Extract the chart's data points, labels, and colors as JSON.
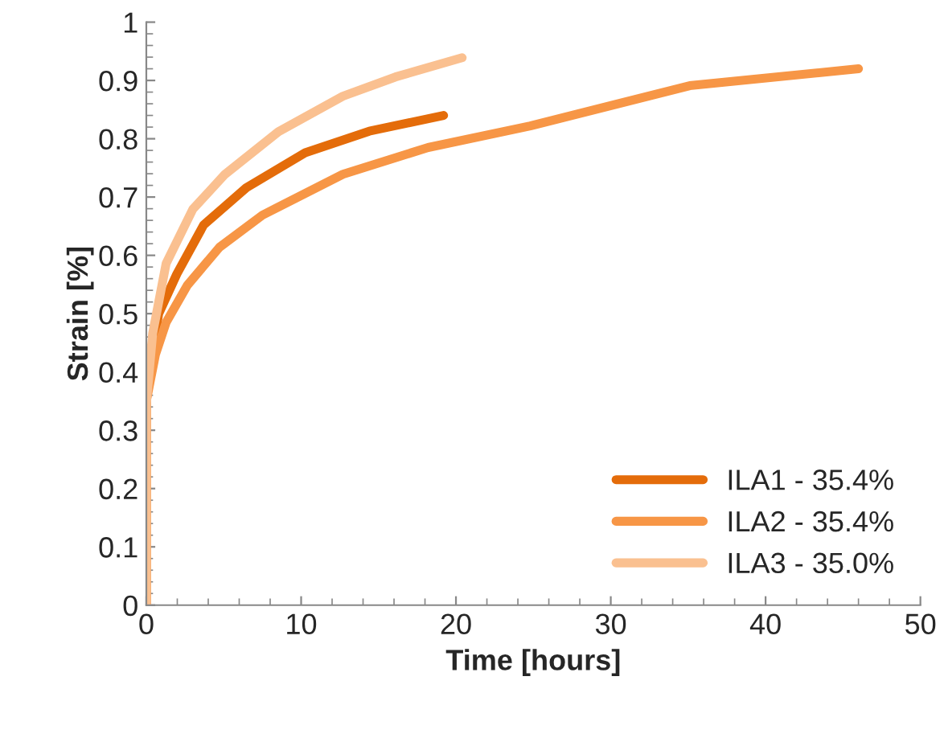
{
  "chart_data": {
    "type": "line",
    "xlabel": "Time [hours]",
    "ylabel": "Strain [%]",
    "xlim": [
      0,
      50
    ],
    "xticks": [
      0,
      10,
      20,
      30,
      40,
      50
    ],
    "ylim": [
      0,
      1
    ],
    "yticks": [
      0,
      0.1,
      0.2,
      0.3,
      0.4,
      0.5,
      0.6,
      0.7,
      0.8,
      0.9,
      1
    ],
    "grid": false,
    "legend": "bottom right",
    "marker": "none",
    "line_style": "solid",
    "series": [
      {
        "name": "ILA1 - 35.4%",
        "color": "#e46c0a",
        "x": [
          0,
          0,
          0.3,
          0.8,
          1.97,
          3.7,
          6.46,
          10.26,
          14.4,
          19.2
        ],
        "values": [
          0,
          0.35,
          0.42,
          0.5,
          0.568,
          0.652,
          0.716,
          0.776,
          0.813,
          0.84
        ]
      },
      {
        "name": "ILA2 - 35.4%",
        "color": "#f79646",
        "x": [
          0,
          0,
          0.59,
          1.28,
          2.66,
          4.73,
          7.5,
          12.7,
          18.2,
          24.8,
          35.1,
          46.0
        ],
        "values": [
          0,
          0.35,
          0.43,
          0.485,
          0.549,
          0.614,
          0.669,
          0.739,
          0.785,
          0.822,
          0.891,
          0.92
        ]
      },
      {
        "name": "ILA3 - 35.0%",
        "color": "#fac090",
        "x": [
          0,
          0,
          0.41,
          1.28,
          3.0,
          5.08,
          8.53,
          12.7,
          16.1,
          20.4
        ],
        "values": [
          0,
          0.346,
          0.466,
          0.586,
          0.679,
          0.739,
          0.812,
          0.873,
          0.906,
          0.939
        ]
      }
    ]
  }
}
